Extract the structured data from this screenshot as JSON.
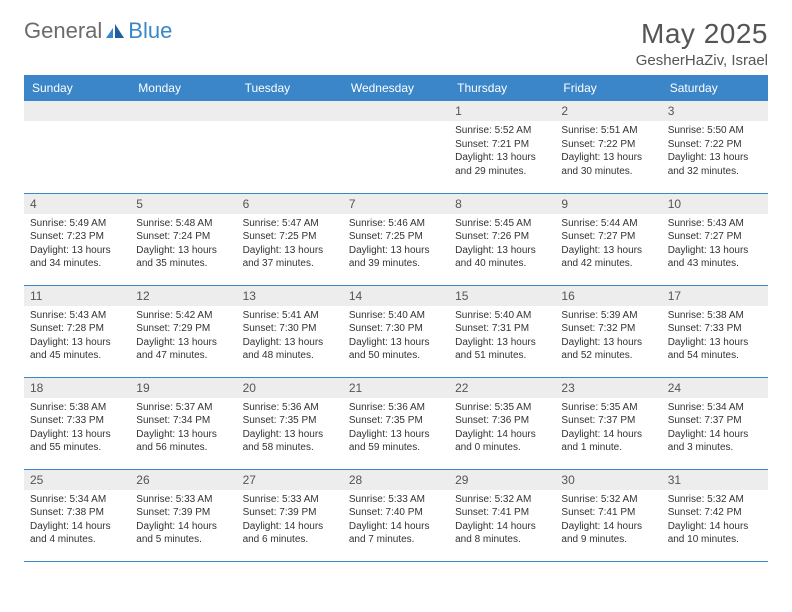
{
  "brand": {
    "general": "General",
    "blue": "Blue"
  },
  "title": "May 2025",
  "location": "GesherHaZiv, Israel",
  "colors": {
    "header_bg": "#3a86c8",
    "header_fg": "#ffffff",
    "daynum_bg": "#ededed",
    "row_border": "#3a86c8",
    "text": "#333333",
    "logo_gray": "#6b6b6b",
    "logo_blue": "#3a86c8",
    "title_color": "#555555"
  },
  "weekdays": [
    "Sunday",
    "Monday",
    "Tuesday",
    "Wednesday",
    "Thursday",
    "Friday",
    "Saturday"
  ],
  "weeks": [
    [
      {
        "n": "",
        "sr": "",
        "ss": "",
        "dl": ""
      },
      {
        "n": "",
        "sr": "",
        "ss": "",
        "dl": ""
      },
      {
        "n": "",
        "sr": "",
        "ss": "",
        "dl": ""
      },
      {
        "n": "",
        "sr": "",
        "ss": "",
        "dl": ""
      },
      {
        "n": "1",
        "sr": "Sunrise: 5:52 AM",
        "ss": "Sunset: 7:21 PM",
        "dl": "Daylight: 13 hours and 29 minutes."
      },
      {
        "n": "2",
        "sr": "Sunrise: 5:51 AM",
        "ss": "Sunset: 7:22 PM",
        "dl": "Daylight: 13 hours and 30 minutes."
      },
      {
        "n": "3",
        "sr": "Sunrise: 5:50 AM",
        "ss": "Sunset: 7:22 PM",
        "dl": "Daylight: 13 hours and 32 minutes."
      }
    ],
    [
      {
        "n": "4",
        "sr": "Sunrise: 5:49 AM",
        "ss": "Sunset: 7:23 PM",
        "dl": "Daylight: 13 hours and 34 minutes."
      },
      {
        "n": "5",
        "sr": "Sunrise: 5:48 AM",
        "ss": "Sunset: 7:24 PM",
        "dl": "Daylight: 13 hours and 35 minutes."
      },
      {
        "n": "6",
        "sr": "Sunrise: 5:47 AM",
        "ss": "Sunset: 7:25 PM",
        "dl": "Daylight: 13 hours and 37 minutes."
      },
      {
        "n": "7",
        "sr": "Sunrise: 5:46 AM",
        "ss": "Sunset: 7:25 PM",
        "dl": "Daylight: 13 hours and 39 minutes."
      },
      {
        "n": "8",
        "sr": "Sunrise: 5:45 AM",
        "ss": "Sunset: 7:26 PM",
        "dl": "Daylight: 13 hours and 40 minutes."
      },
      {
        "n": "9",
        "sr": "Sunrise: 5:44 AM",
        "ss": "Sunset: 7:27 PM",
        "dl": "Daylight: 13 hours and 42 minutes."
      },
      {
        "n": "10",
        "sr": "Sunrise: 5:43 AM",
        "ss": "Sunset: 7:27 PM",
        "dl": "Daylight: 13 hours and 43 minutes."
      }
    ],
    [
      {
        "n": "11",
        "sr": "Sunrise: 5:43 AM",
        "ss": "Sunset: 7:28 PM",
        "dl": "Daylight: 13 hours and 45 minutes."
      },
      {
        "n": "12",
        "sr": "Sunrise: 5:42 AM",
        "ss": "Sunset: 7:29 PM",
        "dl": "Daylight: 13 hours and 47 minutes."
      },
      {
        "n": "13",
        "sr": "Sunrise: 5:41 AM",
        "ss": "Sunset: 7:30 PM",
        "dl": "Daylight: 13 hours and 48 minutes."
      },
      {
        "n": "14",
        "sr": "Sunrise: 5:40 AM",
        "ss": "Sunset: 7:30 PM",
        "dl": "Daylight: 13 hours and 50 minutes."
      },
      {
        "n": "15",
        "sr": "Sunrise: 5:40 AM",
        "ss": "Sunset: 7:31 PM",
        "dl": "Daylight: 13 hours and 51 minutes."
      },
      {
        "n": "16",
        "sr": "Sunrise: 5:39 AM",
        "ss": "Sunset: 7:32 PM",
        "dl": "Daylight: 13 hours and 52 minutes."
      },
      {
        "n": "17",
        "sr": "Sunrise: 5:38 AM",
        "ss": "Sunset: 7:33 PM",
        "dl": "Daylight: 13 hours and 54 minutes."
      }
    ],
    [
      {
        "n": "18",
        "sr": "Sunrise: 5:38 AM",
        "ss": "Sunset: 7:33 PM",
        "dl": "Daylight: 13 hours and 55 minutes."
      },
      {
        "n": "19",
        "sr": "Sunrise: 5:37 AM",
        "ss": "Sunset: 7:34 PM",
        "dl": "Daylight: 13 hours and 56 minutes."
      },
      {
        "n": "20",
        "sr": "Sunrise: 5:36 AM",
        "ss": "Sunset: 7:35 PM",
        "dl": "Daylight: 13 hours and 58 minutes."
      },
      {
        "n": "21",
        "sr": "Sunrise: 5:36 AM",
        "ss": "Sunset: 7:35 PM",
        "dl": "Daylight: 13 hours and 59 minutes."
      },
      {
        "n": "22",
        "sr": "Sunrise: 5:35 AM",
        "ss": "Sunset: 7:36 PM",
        "dl": "Daylight: 14 hours and 0 minutes."
      },
      {
        "n": "23",
        "sr": "Sunrise: 5:35 AM",
        "ss": "Sunset: 7:37 PM",
        "dl": "Daylight: 14 hours and 1 minute."
      },
      {
        "n": "24",
        "sr": "Sunrise: 5:34 AM",
        "ss": "Sunset: 7:37 PM",
        "dl": "Daylight: 14 hours and 3 minutes."
      }
    ],
    [
      {
        "n": "25",
        "sr": "Sunrise: 5:34 AM",
        "ss": "Sunset: 7:38 PM",
        "dl": "Daylight: 14 hours and 4 minutes."
      },
      {
        "n": "26",
        "sr": "Sunrise: 5:33 AM",
        "ss": "Sunset: 7:39 PM",
        "dl": "Daylight: 14 hours and 5 minutes."
      },
      {
        "n": "27",
        "sr": "Sunrise: 5:33 AM",
        "ss": "Sunset: 7:39 PM",
        "dl": "Daylight: 14 hours and 6 minutes."
      },
      {
        "n": "28",
        "sr": "Sunrise: 5:33 AM",
        "ss": "Sunset: 7:40 PM",
        "dl": "Daylight: 14 hours and 7 minutes."
      },
      {
        "n": "29",
        "sr": "Sunrise: 5:32 AM",
        "ss": "Sunset: 7:41 PM",
        "dl": "Daylight: 14 hours and 8 minutes."
      },
      {
        "n": "30",
        "sr": "Sunrise: 5:32 AM",
        "ss": "Sunset: 7:41 PM",
        "dl": "Daylight: 14 hours and 9 minutes."
      },
      {
        "n": "31",
        "sr": "Sunrise: 5:32 AM",
        "ss": "Sunset: 7:42 PM",
        "dl": "Daylight: 14 hours and 10 minutes."
      }
    ]
  ]
}
